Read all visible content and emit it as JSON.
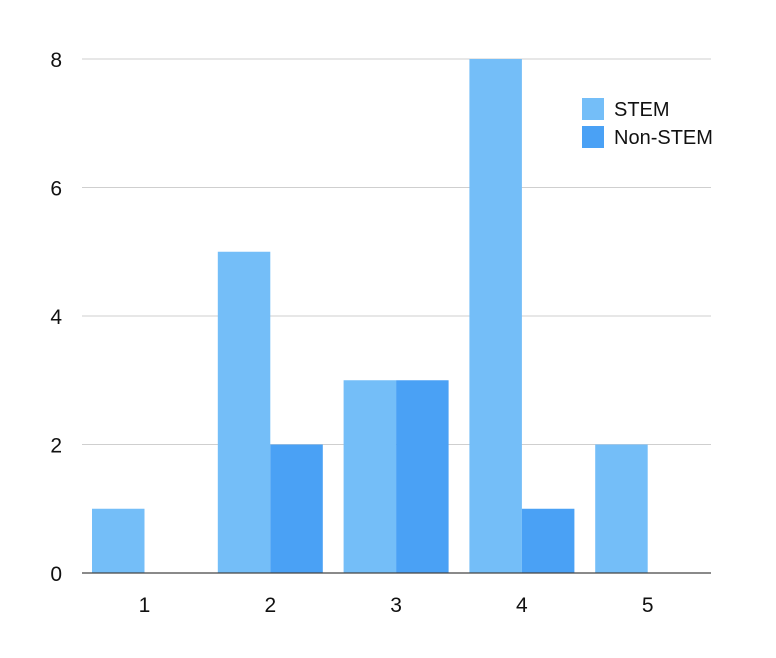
{
  "chart_data": {
    "type": "bar",
    "title": "",
    "xlabel": "",
    "ylabel": "",
    "categories": [
      "1",
      "2",
      "3",
      "4",
      "5"
    ],
    "series": [
      {
        "name": "STEM",
        "values": [
          1,
          5,
          3,
          8,
          2
        ],
        "color": "#74bef8"
      },
      {
        "name": "Non-STEM",
        "values": [
          0,
          2,
          3,
          1,
          0
        ],
        "color": "#4aa1f5"
      }
    ],
    "ylim": [
      0,
      8
    ],
    "yticks": [
      "0",
      "2",
      "4",
      "6",
      "8"
    ],
    "grid": true,
    "legend_position": "top-right"
  }
}
